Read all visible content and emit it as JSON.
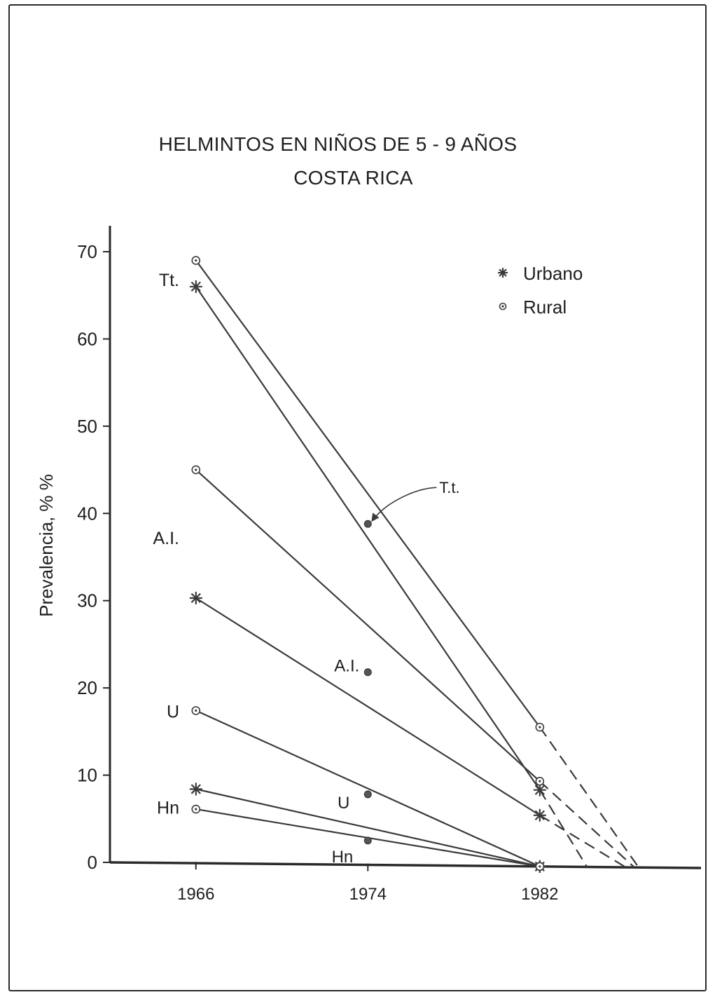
{
  "chart_data": {
    "type": "line",
    "title": "HELMINTOS EN NIÑOS DE 5 - 9 AÑOS",
    "subtitle": "COSTA RICA",
    "xlabel": "",
    "ylabel": "Prevalencia, % %",
    "x": [
      1966,
      1974,
      1982
    ],
    "x_tick_labels": [
      "1966",
      "1974",
      "1982"
    ],
    "xlim": [
      1962,
      1989.5
    ],
    "ylim": [
      0,
      73
    ],
    "y_ticks": [
      0,
      10,
      20,
      30,
      40,
      50,
      60,
      70
    ],
    "y_tick_labels": [
      "0",
      "10",
      "20",
      "30",
      "40",
      "50",
      "60",
      "70"
    ],
    "grid": false,
    "legend": {
      "placement": "top-right",
      "entries": [
        {
          "label": "Urbano",
          "marker": "star"
        },
        {
          "label": "Rural",
          "marker": "open-circle"
        }
      ]
    },
    "series": [
      {
        "label": "Tt.",
        "group": "Rural",
        "marker": "open-circle",
        "points": [
          [
            1966,
            69
          ],
          [
            1982,
            15.5
          ]
        ],
        "projection": [
          [
            1982,
            15.5
          ],
          [
            1986.6,
            0
          ]
        ]
      },
      {
        "label": "Tt.",
        "group": "Urbano",
        "marker": "star",
        "points": [
          [
            1966,
            66
          ],
          [
            1982,
            8.3
          ]
        ],
        "projection": [
          [
            1982,
            8.3
          ],
          [
            1984.2,
            0
          ]
        ]
      },
      {
        "label": "A.I.",
        "group": "Rural",
        "marker": "open-circle",
        "points": [
          [
            1966,
            45
          ],
          [
            1982,
            9.3
          ]
        ],
        "projection": [
          [
            1982,
            9.3
          ],
          [
            1986.4,
            0
          ]
        ]
      },
      {
        "label": "A.I.",
        "group": "Urbano",
        "marker": "star",
        "points": [
          [
            1966,
            30.3
          ],
          [
            1982,
            5.4
          ]
        ],
        "projection": [
          [
            1982,
            5.4
          ],
          [
            1986,
            0
          ]
        ]
      },
      {
        "label": "U",
        "group": "Rural",
        "marker": "open-circle",
        "points": [
          [
            1966,
            17.4
          ],
          [
            1982,
            0
          ]
        ]
      },
      {
        "label": "Hn",
        "group": "Urbano",
        "marker": "star",
        "points": [
          [
            1966,
            8.4
          ],
          [
            1982,
            0
          ]
        ]
      },
      {
        "label": "Hn",
        "group": "Rural",
        "marker": "open-circle",
        "points": [
          [
            1966,
            6.1
          ],
          [
            1982,
            0
          ]
        ]
      }
    ],
    "points_1974": [
      {
        "label": "T.t.",
        "y": 38.8,
        "arrow": true
      },
      {
        "label": "A.I.",
        "y": 21.8
      },
      {
        "label": "U",
        "y": 7.8
      },
      {
        "label": "Hn",
        "y": 2.5
      }
    ],
    "left_labels": [
      {
        "text": "Tt.",
        "y": 66.8
      },
      {
        "text": "A.I.",
        "y": 37.2
      },
      {
        "text": "U",
        "y": 17.3
      },
      {
        "text": "Hn",
        "y": 6.3
      }
    ]
  },
  "colors": {
    "line": "#3a3a3a",
    "text": "#1e1e1e",
    "frame": "#2a2a2a"
  }
}
